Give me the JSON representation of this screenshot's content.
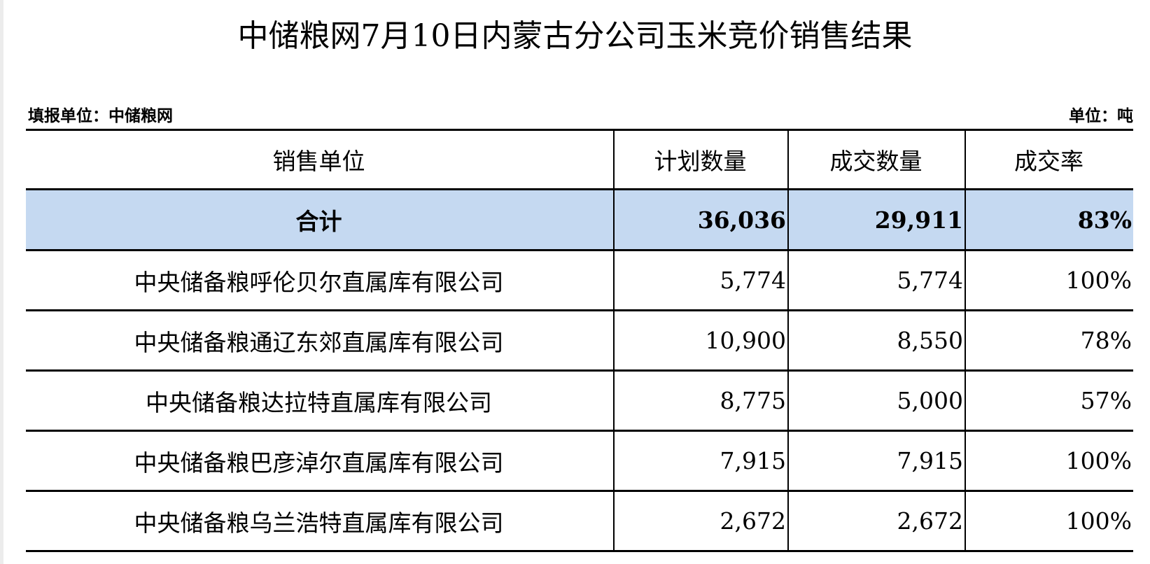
{
  "title": "中储粮网7月10日内蒙古分公司玉米竞价销售结果",
  "reporter": "填报单位：中储粮网",
  "unit": "单位：吨",
  "headers": [
    "销售单位",
    "计划数量",
    "成交数量",
    "成交率"
  ],
  "total": {
    "name": "合计",
    "planned": "36,036",
    "sold": "29,911",
    "rate": "83%"
  },
  "rows": [
    {
      "name": "中央储备粮呼伦贝尔直属库有限公司",
      "planned": "5,774",
      "sold": "5,774",
      "rate": "100%"
    },
    {
      "name": "中央储备粮通辽东郊直属库有限公司",
      "planned": "10,900",
      "sold": "8,550",
      "rate": "78%"
    },
    {
      "name": "中央储备粮达拉特直属库有限公司",
      "planned": "8,775",
      "sold": "5,000",
      "rate": "57%"
    },
    {
      "name": "中央储备粮巴彦淖尔直属库有限公司",
      "planned": "7,915",
      "sold": "7,915",
      "rate": "100%"
    },
    {
      "name": "中央储备粮乌兰浩特直属库有限公司",
      "planned": "2,672",
      "sold": "2,672",
      "rate": "100%"
    }
  ],
  "colors": {
    "total_row_bg": "#c5d9f1"
  }
}
